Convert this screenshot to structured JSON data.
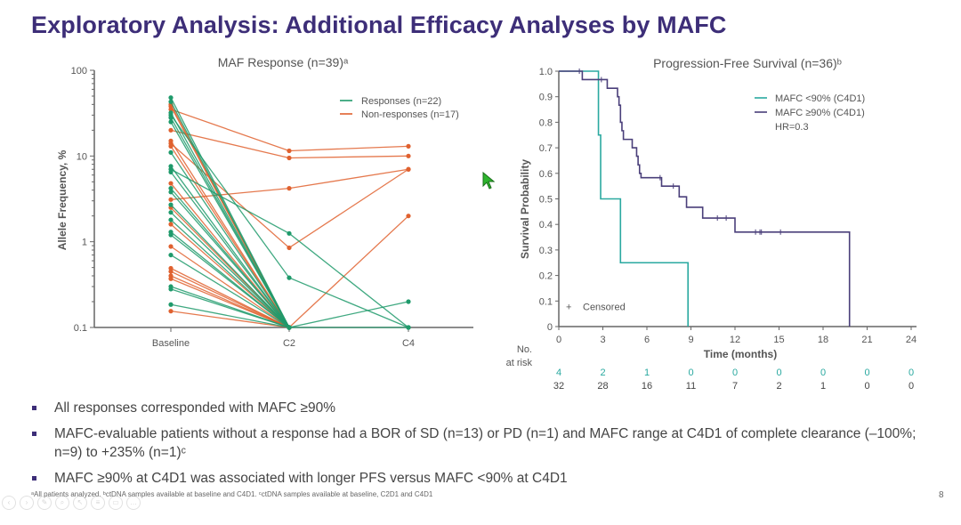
{
  "slide": {
    "title": "Exploratory Analysis: Additional Efficacy Analyses by MAFC",
    "page_number": "8",
    "footnote": "ᵃAll patients analyzed. ᵇctDNA samples available at baseline and C4D1. ᶜctDNA samples available at baseline, C2D1 and C4D1",
    "bullets": [
      "All responses corresponded with MAFC ≥90%",
      "MAFC-evaluable patients without a response had a BOR of SD (n=13) or PD (n=1) and MAFC range at C4D1 of complete clearance (–100%; n=9) to +235% (n=1)ᶜ",
      "MAFC ≥90% at C4D1 was associated with longer PFS versus MAFC <90% at C4D1"
    ],
    "colors": {
      "title": "#3d2e78",
      "responses": "#1f9a6b",
      "non_responses": "#e0612f",
      "mafc_lt90": "#2aa9a0",
      "mafc_ge90": "#4a3f7a"
    },
    "toolbar_icons": [
      "back-icon",
      "forward-icon",
      "pen-icon",
      "zoom-icon",
      "pointer-icon",
      "menu-icon",
      "screen-icon",
      "more-icon"
    ]
  },
  "chart_data": [
    {
      "type": "line",
      "title": "MAF Response (n=39)ᵃ",
      "xlabel": "",
      "ylabel": "Allele Frequency, %",
      "yscale": "log",
      "ylim": [
        0.1,
        100
      ],
      "yticks": [
        "100",
        "10",
        "1",
        "0.1"
      ],
      "categories": [
        "Baseline",
        "C2",
        "C4"
      ],
      "legend": {
        "placement": "top-right",
        "entries": [
          "Responses (n=22)",
          "Non-responses (n=17)"
        ]
      },
      "series": [
        {
          "group": "Non-responses (n=17)",
          "values": [
            35,
            11.5,
            13
          ]
        },
        {
          "group": "Non-responses (n=17)",
          "values": [
            20,
            9.5,
            10
          ]
        },
        {
          "group": "Non-responses (n=17)",
          "values": [
            3.1,
            4.2,
            7
          ]
        },
        {
          "group": "Non-responses (n=17)",
          "values": [
            14,
            0.85,
            7
          ]
        },
        {
          "group": "Non-responses (n=17)",
          "values": [
            0.45,
            0.1,
            2
          ]
        },
        {
          "group": "Non-responses (n=17)",
          "values": [
            40,
            0.1
          ]
        },
        {
          "group": "Non-responses (n=17)",
          "values": [
            38,
            0.1
          ]
        },
        {
          "group": "Non-responses (n=17)",
          "values": [
            15,
            0.1
          ]
        },
        {
          "group": "Non-responses (n=17)",
          "values": [
            13,
            0.1
          ]
        },
        {
          "group": "Non-responses (n=17)",
          "values": [
            4.8,
            0.1
          ]
        },
        {
          "group": "Non-responses (n=17)",
          "values": [
            2.5,
            0.1
          ]
        },
        {
          "group": "Non-responses (n=17)",
          "values": [
            1.6,
            0.1
          ]
        },
        {
          "group": "Non-responses (n=17)",
          "values": [
            0.88,
            0.1
          ]
        },
        {
          "group": "Non-responses (n=17)",
          "values": [
            0.49,
            0.1
          ]
        },
        {
          "group": "Non-responses (n=17)",
          "values": [
            0.4,
            0.1
          ]
        },
        {
          "group": "Non-responses (n=17)",
          "values": [
            0.37,
            0.1
          ]
        },
        {
          "group": "Non-responses (n=17)",
          "values": [
            0.155,
            0.1
          ]
        },
        {
          "group": "Responses (n=22)",
          "values": [
            7,
            1.25,
            0.1
          ]
        },
        {
          "group": "Responses (n=22)",
          "values": [
            30,
            0.38,
            0.1
          ]
        },
        {
          "group": "Responses (n=22)",
          "values": [
            48,
            0.1,
            0.1
          ]
        },
        {
          "group": "Responses (n=22)",
          "values": [
            6.5,
            0.1,
            0.2
          ]
        },
        {
          "group": "Responses (n=22)",
          "values": [
            43,
            0.1
          ]
        },
        {
          "group": "Responses (n=22)",
          "values": [
            32,
            0.1
          ]
        },
        {
          "group": "Responses (n=22)",
          "values": [
            28,
            0.1
          ]
        },
        {
          "group": "Responses (n=22)",
          "values": [
            25,
            0.1
          ]
        },
        {
          "group": "Responses (n=22)",
          "values": [
            11,
            0.1
          ]
        },
        {
          "group": "Responses (n=22)",
          "values": [
            7.6,
            0.1
          ]
        },
        {
          "group": "Responses (n=22)",
          "values": [
            4.2,
            0.1
          ]
        },
        {
          "group": "Responses (n=22)",
          "values": [
            3.8,
            0.1
          ]
        },
        {
          "group": "Responses (n=22)",
          "values": [
            2.7,
            0.1
          ]
        },
        {
          "group": "Responses (n=22)",
          "values": [
            2.2,
            0.1
          ]
        },
        {
          "group": "Responses (n=22)",
          "values": [
            1.8,
            0.1
          ]
        },
        {
          "group": "Responses (n=22)",
          "values": [
            1.3,
            0.1
          ]
        },
        {
          "group": "Responses (n=22)",
          "values": [
            1.2,
            0.1
          ]
        },
        {
          "group": "Responses (n=22)",
          "values": [
            0.7,
            0.1
          ]
        },
        {
          "group": "Responses (n=22)",
          "values": [
            0.3,
            0.1
          ]
        },
        {
          "group": "Responses (n=22)",
          "values": [
            0.28,
            0.1
          ]
        },
        {
          "group": "Responses (n=22)",
          "values": [
            0.185,
            0.1
          ]
        }
      ]
    },
    {
      "type": "line",
      "subtype": "kaplan-meier",
      "title": "Progression-Free Survival (n=36)ᵇ",
      "xlabel": "Time (months)",
      "ylabel": "Survival Probability",
      "xlim": [
        0,
        24
      ],
      "ylim": [
        0,
        1.0
      ],
      "xticks": [
        "0",
        "3",
        "6",
        "9",
        "12",
        "15",
        "18",
        "21",
        "24"
      ],
      "yticks": [
        "0",
        "0.1",
        "0.2",
        "0.3",
        "0.4",
        "0.5",
        "0.6",
        "0.7",
        "0.8",
        "0.9",
        "1.0"
      ],
      "legend": {
        "placement": "top-right",
        "entries": [
          "MAFC <90% (C4D1)",
          "MAFC ≥90% (C4D1)"
        ],
        "note": "HR=0.3"
      },
      "censored_label": "Censored",
      "series": [
        {
          "name": "MAFC <90% (C4D1)",
          "steps": [
            [
              0,
              1.0
            ],
            [
              2.7,
              0.75
            ],
            [
              2.85,
              0.5
            ],
            [
              4.2,
              0.25
            ],
            [
              8.8,
              0.0
            ]
          ],
          "censored": []
        },
        {
          "name": "MAFC ≥90% (C4D1)",
          "steps": [
            [
              0,
              1.0
            ],
            [
              1.6,
              0.967
            ],
            [
              3.3,
              0.933
            ],
            [
              4.0,
              0.9
            ],
            [
              4.1,
              0.867
            ],
            [
              4.2,
              0.8
            ],
            [
              4.3,
              0.767
            ],
            [
              4.4,
              0.733
            ],
            [
              5.0,
              0.7
            ],
            [
              5.3,
              0.667
            ],
            [
              5.4,
              0.633
            ],
            [
              5.5,
              0.6
            ],
            [
              5.6,
              0.583
            ],
            [
              7.0,
              0.55
            ],
            [
              8.2,
              0.508
            ],
            [
              8.7,
              0.467
            ],
            [
              9.8,
              0.425
            ],
            [
              12.0,
              0.37
            ],
            [
              19.8,
              0.0
            ]
          ],
          "censored": [
            1.4,
            2.9,
            6.9,
            7.8,
            10.8,
            11.4,
            13.4,
            13.7,
            13.8,
            15.1
          ]
        }
      ],
      "at_risk": {
        "label_line1": "No.",
        "label_line2": "at risk",
        "times": [
          0,
          3,
          6,
          9,
          12,
          15,
          18,
          21,
          24
        ],
        "rows": [
          {
            "name": "MAFC <90% (C4D1)",
            "values": [
              "4",
              "2",
              "1",
              "0",
              "0",
              "0",
              "0",
              "0",
              "0"
            ]
          },
          {
            "name": "MAFC ≥90% (C4D1)",
            "values": [
              "32",
              "28",
              "16",
              "11",
              "7",
              "2",
              "1",
              "0",
              "0"
            ]
          }
        ]
      }
    }
  ]
}
